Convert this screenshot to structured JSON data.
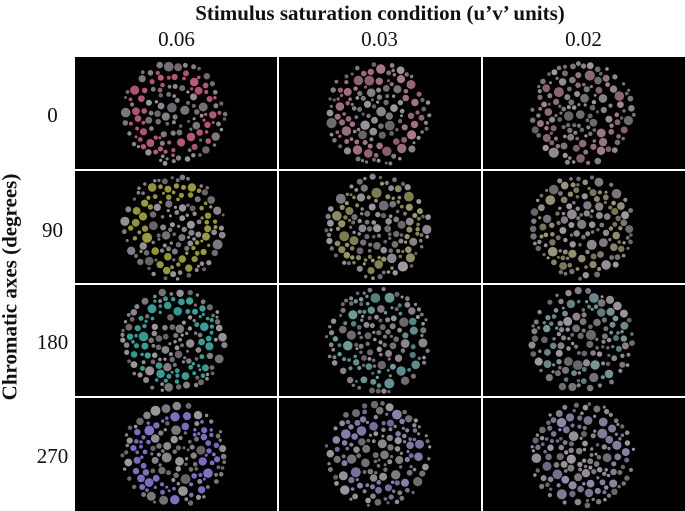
{
  "header": {
    "column_title": "Stimulus saturation condition (u’v’ units)",
    "row_title": "Chromatic axes (degrees)"
  },
  "columns": [
    {
      "label": "0.06",
      "saturation": 0.06
    },
    {
      "label": "0.03",
      "saturation": 0.03
    },
    {
      "label": "0.02",
      "saturation": 0.02
    }
  ],
  "rows": [
    {
      "label": "0",
      "hue_color": "#b8506e"
    },
    {
      "label": "90",
      "hue_color": "#9a9a32"
    },
    {
      "label": "180",
      "hue_color": "#2f9f97"
    },
    {
      "label": "270",
      "hue_color": "#7c68c8"
    }
  ],
  "colors": {
    "background": "#000000",
    "neutral_dot": "#7f7a80",
    "divider": "#ffffff"
  }
}
